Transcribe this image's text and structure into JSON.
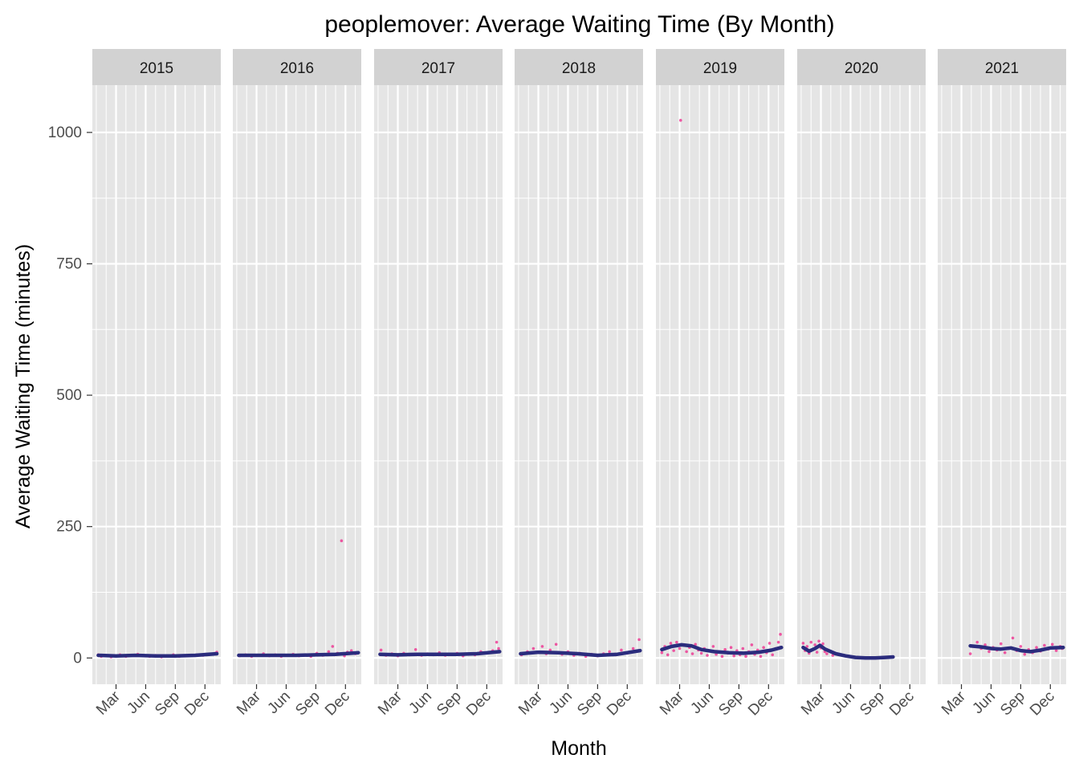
{
  "chart_data": {
    "type": "scatter",
    "title": "peoplemover: Average Waiting Time (By Month)",
    "xlabel": "Month",
    "ylabel": "Average Waiting Time (minutes)",
    "ylim": [
      -50,
      1090
    ],
    "y_ticks": [
      0,
      250,
      500,
      750,
      1000
    ],
    "x_ticks": [
      "Mar",
      "Jun",
      "Sep",
      "Dec"
    ],
    "x_tick_months": [
      3,
      6,
      9,
      12
    ],
    "xlim_months": [
      0.6,
      13.6
    ],
    "grid": true,
    "facet_by": "year",
    "colors": {
      "panel_bg": "#E5E5E5",
      "strip_bg": "#D2D2D2",
      "grid": "#FFFFFF",
      "points": "#F01A84",
      "smooth": "#2B2C7D"
    },
    "facets": [
      {
        "label": "2015",
        "range": [
          1.2,
          13.2
        ],
        "smooth": [
          [
            1.2,
            5
          ],
          [
            3,
            4
          ],
          [
            5,
            5
          ],
          [
            7,
            4
          ],
          [
            9,
            4
          ],
          [
            11,
            5
          ],
          [
            13.2,
            8
          ]
        ],
        "points": [
          [
            1.2,
            6
          ],
          [
            1.5,
            3
          ],
          [
            2.0,
            5
          ],
          [
            2.5,
            2
          ],
          [
            3.0,
            4
          ],
          [
            3.4,
            6
          ],
          [
            4.0,
            3
          ],
          [
            4.6,
            5
          ],
          [
            5.2,
            7
          ],
          [
            5.8,
            4
          ],
          [
            6.4,
            3
          ],
          [
            7.0,
            5
          ],
          [
            7.6,
            2
          ],
          [
            8.2,
            4
          ],
          [
            8.8,
            6
          ],
          [
            9.4,
            3
          ],
          [
            10.0,
            4
          ],
          [
            10.6,
            5
          ],
          [
            11.2,
            6
          ],
          [
            11.8,
            5
          ],
          [
            12.4,
            7
          ],
          [
            13.0,
            9
          ],
          [
            13.2,
            11
          ]
        ]
      },
      {
        "label": "2016",
        "range": [
          1.2,
          13.3
        ],
        "smooth": [
          [
            1.2,
            5
          ],
          [
            3,
            5
          ],
          [
            5,
            5
          ],
          [
            7,
            5
          ],
          [
            9,
            6
          ],
          [
            11,
            7
          ],
          [
            13.3,
            10
          ]
        ],
        "points": [
          [
            1.3,
            4
          ],
          [
            1.9,
            6
          ],
          [
            2.5,
            3
          ],
          [
            3.1,
            5
          ],
          [
            3.7,
            8
          ],
          [
            4.3,
            4
          ],
          [
            4.9,
            6
          ],
          [
            5.5,
            3
          ],
          [
            6.1,
            5
          ],
          [
            6.7,
            7
          ],
          [
            7.3,
            4
          ],
          [
            7.9,
            6
          ],
          [
            8.5,
            3
          ],
          [
            9.1,
            9
          ],
          [
            9.7,
            5
          ],
          [
            10.3,
            12
          ],
          [
            10.7,
            22
          ],
          [
            10.9,
            6
          ],
          [
            11.2,
            9
          ],
          [
            11.6,
            223
          ],
          [
            11.9,
            4
          ],
          [
            12.2,
            11
          ],
          [
            12.6,
            14
          ],
          [
            13.0,
            8
          ],
          [
            13.3,
            10
          ]
        ]
      },
      {
        "label": "2017",
        "range": [
          1.2,
          13.3
        ],
        "smooth": [
          [
            1.2,
            7
          ],
          [
            3,
            6
          ],
          [
            5,
            7
          ],
          [
            7,
            7
          ],
          [
            9,
            7
          ],
          [
            11,
            8
          ],
          [
            13.3,
            12
          ]
        ],
        "points": [
          [
            1.3,
            15
          ],
          [
            1.8,
            5
          ],
          [
            2.4,
            8
          ],
          [
            3.0,
            4
          ],
          [
            3.6,
            9
          ],
          [
            4.2,
            6
          ],
          [
            4.8,
            16
          ],
          [
            5.4,
            5
          ],
          [
            6.0,
            8
          ],
          [
            6.6,
            6
          ],
          [
            7.2,
            10
          ],
          [
            7.8,
            5
          ],
          [
            8.4,
            7
          ],
          [
            9.0,
            9
          ],
          [
            9.6,
            4
          ],
          [
            10.2,
            8
          ],
          [
            10.8,
            6
          ],
          [
            11.4,
            12
          ],
          [
            12.0,
            9
          ],
          [
            12.6,
            14
          ],
          [
            13.0,
            30
          ],
          [
            13.2,
            18
          ]
        ]
      },
      {
        "label": "2018",
        "range": [
          1.2,
          13.3
        ],
        "smooth": [
          [
            1.2,
            8
          ],
          [
            3,
            11
          ],
          [
            5,
            10
          ],
          [
            7,
            8
          ],
          [
            9,
            5
          ],
          [
            11,
            7
          ],
          [
            13.3,
            14
          ]
        ],
        "points": [
          [
            1.3,
            6
          ],
          [
            1.9,
            12
          ],
          [
            2.5,
            18
          ],
          [
            3.0,
            10
          ],
          [
            3.4,
            22
          ],
          [
            3.8,
            8
          ],
          [
            4.2,
            15
          ],
          [
            4.8,
            26
          ],
          [
            5.4,
            7
          ],
          [
            6.0,
            12
          ],
          [
            6.6,
            5
          ],
          [
            7.2,
            9
          ],
          [
            7.8,
            3
          ],
          [
            8.4,
            7
          ],
          [
            9.0,
            4
          ],
          [
            9.6,
            8
          ],
          [
            10.2,
            12
          ],
          [
            10.8,
            6
          ],
          [
            11.4,
            15
          ],
          [
            12.0,
            9
          ],
          [
            12.6,
            18
          ],
          [
            13.2,
            35
          ]
        ]
      },
      {
        "label": "2019",
        "range": [
          1.2,
          13.3
        ],
        "smooth": [
          [
            1.2,
            16
          ],
          [
            2.2,
            22
          ],
          [
            3.2,
            25
          ],
          [
            4.2,
            23
          ],
          [
            5.2,
            16
          ],
          [
            6.5,
            12
          ],
          [
            8,
            10
          ],
          [
            9.5,
            9
          ],
          [
            11,
            11
          ],
          [
            12.3,
            15
          ],
          [
            13.3,
            20
          ]
        ],
        "points": [
          [
            1.2,
            10
          ],
          [
            1.5,
            22
          ],
          [
            1.8,
            6
          ],
          [
            2.1,
            28
          ],
          [
            2.4,
            14
          ],
          [
            2.7,
            30
          ],
          [
            3.0,
            18
          ],
          [
            3.1,
            1023
          ],
          [
            3.4,
            24
          ],
          [
            3.7,
            12
          ],
          [
            4.0,
            20
          ],
          [
            4.3,
            8
          ],
          [
            4.6,
            26
          ],
          [
            4.9,
            15
          ],
          [
            5.2,
            9
          ],
          [
            5.5,
            18
          ],
          [
            5.8,
            5
          ],
          [
            6.1,
            14
          ],
          [
            6.4,
            22
          ],
          [
            6.7,
            7
          ],
          [
            7.0,
            12
          ],
          [
            7.3,
            3
          ],
          [
            7.6,
            16
          ],
          [
            7.9,
            9
          ],
          [
            8.2,
            20
          ],
          [
            8.5,
            4
          ],
          [
            8.8,
            14
          ],
          [
            9.1,
            6
          ],
          [
            9.4,
            18
          ],
          [
            9.7,
            3
          ],
          [
            10.0,
            12
          ],
          [
            10.3,
            25
          ],
          [
            10.6,
            7
          ],
          [
            10.9,
            15
          ],
          [
            11.2,
            3
          ],
          [
            11.5,
            20
          ],
          [
            11.8,
            10
          ],
          [
            12.1,
            28
          ],
          [
            12.4,
            6
          ],
          [
            12.7,
            18
          ],
          [
            13.0,
            30
          ],
          [
            13.2,
            45
          ]
        ]
      },
      {
        "label": "2020",
        "range": [
          1.2,
          10.3
        ],
        "smooth": [
          [
            1.2,
            20
          ],
          [
            1.8,
            13
          ],
          [
            2.4,
            18
          ],
          [
            2.9,
            24
          ],
          [
            3.4,
            17
          ],
          [
            4.5,
            8
          ],
          [
            5.5,
            4
          ],
          [
            6.5,
            1
          ],
          [
            7.5,
            0
          ],
          [
            8.5,
            0
          ],
          [
            9.5,
            1
          ],
          [
            10.3,
            2
          ]
        ],
        "points": [
          [
            1.2,
            28
          ],
          [
            1.4,
            14
          ],
          [
            1.6,
            22
          ],
          [
            1.8,
            9
          ],
          [
            2.0,
            30
          ],
          [
            2.2,
            16
          ],
          [
            2.4,
            25
          ],
          [
            2.6,
            11
          ],
          [
            2.8,
            32
          ],
          [
            3.0,
            19
          ],
          [
            3.2,
            27
          ],
          [
            3.4,
            12
          ],
          [
            3.6,
            8
          ],
          [
            4.2,
            5
          ],
          [
            10.2,
            2
          ]
        ]
      },
      {
        "label": "2021",
        "range": [
          3.9,
          13.3
        ],
        "smooth": [
          [
            3.9,
            23
          ],
          [
            5,
            21
          ],
          [
            6,
            18
          ],
          [
            7,
            17
          ],
          [
            8,
            19
          ],
          [
            9,
            14
          ],
          [
            10,
            12
          ],
          [
            11,
            15
          ],
          [
            12,
            19
          ],
          [
            13.3,
            20
          ]
        ],
        "points": [
          [
            3.9,
            8
          ],
          [
            4.2,
            22
          ],
          [
            4.6,
            30
          ],
          [
            5.0,
            18
          ],
          [
            5.4,
            25
          ],
          [
            5.8,
            12
          ],
          [
            6.2,
            20
          ],
          [
            6.6,
            15
          ],
          [
            7.0,
            27
          ],
          [
            7.4,
            10
          ],
          [
            7.8,
            18
          ],
          [
            8.2,
            38
          ],
          [
            8.6,
            14
          ],
          [
            9.0,
            22
          ],
          [
            9.4,
            7
          ],
          [
            9.8,
            16
          ],
          [
            10.2,
            10
          ],
          [
            10.6,
            20
          ],
          [
            11.0,
            13
          ],
          [
            11.4,
            24
          ],
          [
            11.8,
            17
          ],
          [
            12.2,
            26
          ],
          [
            12.6,
            14
          ],
          [
            13.0,
            22
          ],
          [
            13.2,
            18
          ]
        ]
      }
    ]
  }
}
